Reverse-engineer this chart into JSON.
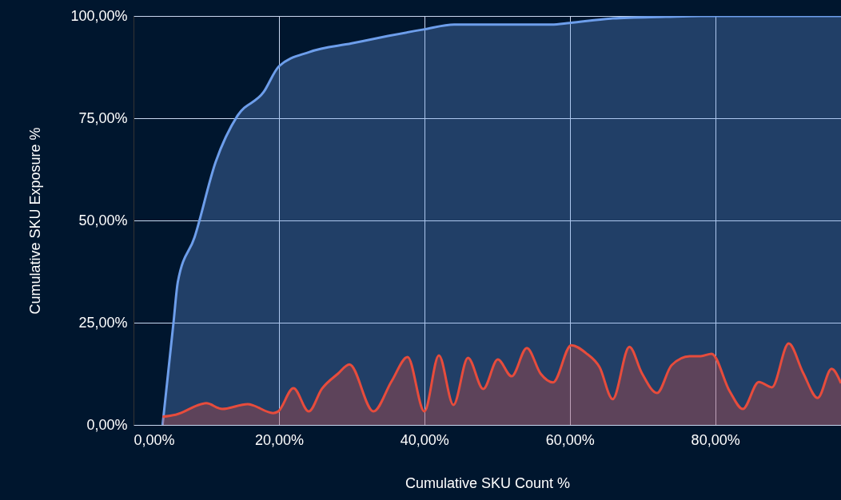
{
  "chart_data": {
    "type": "area",
    "xlabel": "Cumulative SKU Count %",
    "ylabel": "Cumulative SKU Exposure %",
    "xlim": [
      0,
      97.3
    ],
    "ylim": [
      0,
      100
    ],
    "xticks": [
      {
        "value": 0,
        "label": "0,00%"
      },
      {
        "value": 20,
        "label": "20,00%"
      },
      {
        "value": 40,
        "label": "40,00%"
      },
      {
        "value": 60,
        "label": "60,00%"
      },
      {
        "value": 80,
        "label": "80,00%"
      }
    ],
    "yticks": [
      {
        "value": 0,
        "label": "0,00%"
      },
      {
        "value": 25,
        "label": "25,00%"
      },
      {
        "value": 50,
        "label": "50,00%"
      },
      {
        "value": 75,
        "label": "75,00%"
      },
      {
        "value": 100,
        "label": "100,00%"
      }
    ],
    "grid": true,
    "series": [
      {
        "color": "#6d9eeb",
        "x": [
          4.0,
          5.5,
          6.1,
          8.4,
          11.3,
          14.3,
          17.9,
          20.0,
          24.2,
          30.0,
          35.0,
          39.9,
          44.1,
          57.5,
          60.0,
          65.9,
          73.2,
          78.0,
          97.3
        ],
        "values": [
          0,
          25,
          35,
          45.9,
          64.3,
          75.6,
          81.4,
          87.7,
          91.2,
          93.3,
          95.1,
          96.7,
          97.9,
          97.9,
          98.3,
          99.4,
          99.8,
          100,
          100
        ]
      },
      {
        "color": "#e74c3c",
        "x": [
          4.0,
          5.8,
          10.0,
          12.2,
          15.7,
          19.2,
          19.9,
          22.0,
          24.1,
          25.9,
          28.1,
          29.7,
          33.0,
          35.5,
          37.7,
          40.0,
          42.0,
          44.0,
          46.0,
          48.1,
          50.1,
          52.0,
          54.1,
          56.0,
          57.7,
          60.2,
          62.2,
          64.1,
          65.9,
          68.2,
          69.9,
          72.0,
          74.0,
          76.5,
          78.0,
          79.5,
          82.0,
          83.8,
          86.0,
          87.8,
          90.1,
          92.1,
          94.1,
          96.0,
          97.3
        ],
        "values": [
          2.0,
          2.5,
          5.3,
          3.9,
          5.1,
          2.9,
          3.3,
          9.0,
          3.3,
          8.8,
          12.5,
          14.8,
          3.3,
          10.7,
          16.6,
          3.3,
          17.0,
          4.9,
          16.4,
          8.8,
          16.0,
          11.9,
          18.8,
          12.5,
          10.4,
          19.5,
          17.6,
          14.1,
          6.3,
          19.1,
          12.7,
          7.8,
          14.6,
          16.8,
          16.8,
          17.4,
          8.2,
          3.9,
          10.5,
          9.2,
          19.9,
          12.7,
          6.6,
          13.7,
          10.2
        ]
      }
    ]
  }
}
